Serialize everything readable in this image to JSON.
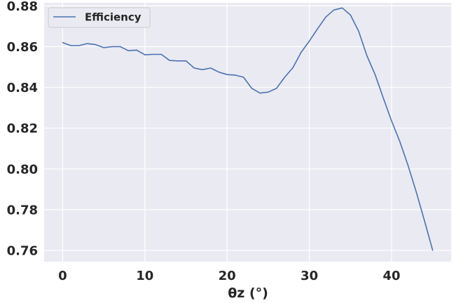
{
  "chart_data": {
    "type": "line",
    "title": "",
    "xlabel": "θz (°)",
    "ylabel": "",
    "xlim": [
      -2.25,
      47.25
    ],
    "ylim": [
      0.7545,
      0.8815
    ],
    "xticks": [
      0,
      10,
      20,
      30,
      40
    ],
    "yticks": [
      0.76,
      0.78,
      0.8,
      0.82,
      0.84,
      0.86,
      0.88
    ],
    "xtick_labels": [
      "0",
      "10",
      "20",
      "30",
      "40"
    ],
    "ytick_labels": [
      "0.76",
      "0.78",
      "0.80",
      "0.82",
      "0.84",
      "0.86",
      "0.88"
    ],
    "grid": true,
    "legend_position": "upper-left",
    "background": "#eaeaf2",
    "series": [
      {
        "name": "Efficiency",
        "color": "#4c72b0",
        "x": [
          0,
          1,
          2,
          3,
          4,
          5,
          6,
          7,
          8,
          9,
          10,
          11,
          12,
          13,
          14,
          15,
          16,
          17,
          18,
          19,
          20,
          21,
          22,
          23,
          24,
          25,
          26,
          27,
          28,
          29,
          30,
          31,
          32,
          33,
          34,
          35,
          36,
          37,
          38,
          39,
          40,
          41,
          42,
          43,
          44,
          45
        ],
        "y": [
          0.862,
          0.8605,
          0.8605,
          0.8615,
          0.861,
          0.8595,
          0.86,
          0.86,
          0.858,
          0.8583,
          0.856,
          0.8562,
          0.8562,
          0.8532,
          0.853,
          0.853,
          0.8495,
          0.8487,
          0.8495,
          0.8475,
          0.8463,
          0.846,
          0.845,
          0.8395,
          0.8372,
          0.8377,
          0.8395,
          0.845,
          0.8497,
          0.8572,
          0.8627,
          0.8688,
          0.8745,
          0.878,
          0.879,
          0.8755,
          0.8675,
          0.8555,
          0.8463,
          0.8347,
          0.8235,
          0.8135,
          0.8017,
          0.7887,
          0.7745,
          0.76
        ]
      }
    ]
  }
}
